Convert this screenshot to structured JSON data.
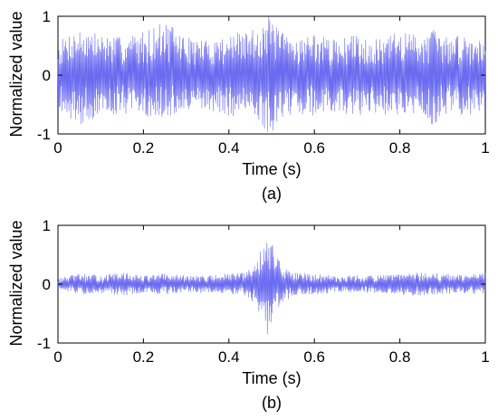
{
  "chart_data": [
    {
      "type": "line",
      "caption": "(a)",
      "xlabel": "Time (s)",
      "ylabel": "Normalized value",
      "xlim": [
        0,
        1
      ],
      "ylim": [
        -1,
        1
      ],
      "xticks": [
        "0",
        "0.2",
        "0.4",
        "0.6",
        "0.8",
        "1"
      ],
      "yticks": [
        "-1",
        "0",
        "1"
      ],
      "grid": false,
      "legend": "none",
      "series_color": "#6b6bf0",
      "envelope": {
        "t": [
          0,
          0.03,
          0.06,
          0.1,
          0.15,
          0.2,
          0.25,
          0.3,
          0.35,
          0.4,
          0.45,
          0.48,
          0.49,
          0.5,
          0.52,
          0.55,
          0.6,
          0.65,
          0.7,
          0.75,
          0.8,
          0.85,
          0.88,
          0.9,
          0.95,
          1.0
        ],
        "upper": [
          0.55,
          0.75,
          0.8,
          0.7,
          0.65,
          0.75,
          0.92,
          0.65,
          0.6,
          0.7,
          0.75,
          0.95,
          1.0,
          0.98,
          0.75,
          0.65,
          0.7,
          0.6,
          0.7,
          0.6,
          0.75,
          0.7,
          0.8,
          0.65,
          0.7,
          0.6
        ],
        "lower": [
          -0.55,
          -0.75,
          -0.85,
          -0.7,
          -0.65,
          -0.7,
          -0.75,
          -0.65,
          -0.6,
          -0.7,
          -0.75,
          -0.92,
          -1.0,
          -0.98,
          -0.75,
          -0.65,
          -0.7,
          -0.65,
          -0.7,
          -0.65,
          -0.75,
          -0.65,
          -0.9,
          -0.65,
          -0.7,
          -0.6
        ]
      }
    },
    {
      "type": "line",
      "caption": "(b)",
      "xlabel": "Time (s)",
      "ylabel": "Normalized value",
      "xlim": [
        0,
        1
      ],
      "ylim": [
        -1,
        1
      ],
      "xticks": [
        "0",
        "0.2",
        "0.4",
        "0.6",
        "0.8",
        "1"
      ],
      "yticks": [
        "-1",
        "0",
        "1"
      ],
      "grid": false,
      "legend": "none",
      "series_color": "#6b6bf0",
      "envelope": {
        "t": [
          0,
          0.05,
          0.1,
          0.15,
          0.2,
          0.25,
          0.3,
          0.35,
          0.4,
          0.44,
          0.46,
          0.47,
          0.48,
          0.49,
          0.5,
          0.51,
          0.53,
          0.55,
          0.6,
          0.65,
          0.7,
          0.75,
          0.8,
          0.85,
          0.9,
          0.95,
          1.0
        ],
        "upper": [
          0.1,
          0.18,
          0.15,
          0.2,
          0.15,
          0.18,
          0.15,
          0.15,
          0.18,
          0.2,
          0.35,
          0.5,
          0.8,
          0.92,
          0.7,
          0.55,
          0.3,
          0.2,
          0.18,
          0.15,
          0.15,
          0.15,
          0.18,
          0.2,
          0.18,
          0.15,
          0.2
        ],
        "lower": [
          -0.1,
          -0.18,
          -0.15,
          -0.2,
          -0.15,
          -0.18,
          -0.15,
          -0.15,
          -0.18,
          -0.2,
          -0.35,
          -0.5,
          -0.8,
          -0.88,
          -0.65,
          -0.5,
          -0.3,
          -0.2,
          -0.18,
          -0.15,
          -0.15,
          -0.15,
          -0.18,
          -0.2,
          -0.18,
          -0.15,
          -0.2
        ]
      }
    }
  ]
}
